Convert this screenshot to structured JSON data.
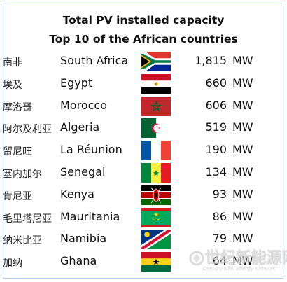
{
  "chart_data": {
    "type": "table",
    "title_line1": "Total PV installed capacity",
    "title_line2": "Top 10 of the African countries",
    "unit": "MW",
    "rows": [
      {
        "zh": "南非",
        "country": "South Africa",
        "value_text": "1,815",
        "value": 1815,
        "flag": "south-africa"
      },
      {
        "zh": "埃及",
        "country": "Egypt",
        "value_text": "660",
        "value": 660,
        "flag": "egypt"
      },
      {
        "zh": "摩洛哥",
        "country": "Morocco",
        "value_text": "606",
        "value": 606,
        "flag": "morocco"
      },
      {
        "zh": "阿尔及利亚",
        "country": "Algeria",
        "value_text": "519",
        "value": 519,
        "flag": "algeria"
      },
      {
        "zh": "留尼旺",
        "country": "La Réunion",
        "value_text": "190",
        "value": 190,
        "flag": "reunion"
      },
      {
        "zh": "塞内加尔",
        "country": "Senegal",
        "value_text": "134",
        "value": 134,
        "flag": "senegal"
      },
      {
        "zh": "肯尼亚",
        "country": "Kenya",
        "value_text": "93",
        "value": 93,
        "flag": "kenya"
      },
      {
        "zh": "毛里塔尼亚",
        "country": "Mauritania",
        "value_text": "86",
        "value": 86,
        "flag": "mauritania"
      },
      {
        "zh": "纳米比亚",
        "country": "Namibia",
        "value_text": "79",
        "value": 79,
        "flag": "namibia"
      },
      {
        "zh": "加纳",
        "country": "Ghana",
        "value_text": "64",
        "value": 64,
        "flag": "ghana"
      }
    ]
  },
  "watermark": {
    "cn": "世纪新能源网",
    "en": "Century New Energy Network"
  }
}
